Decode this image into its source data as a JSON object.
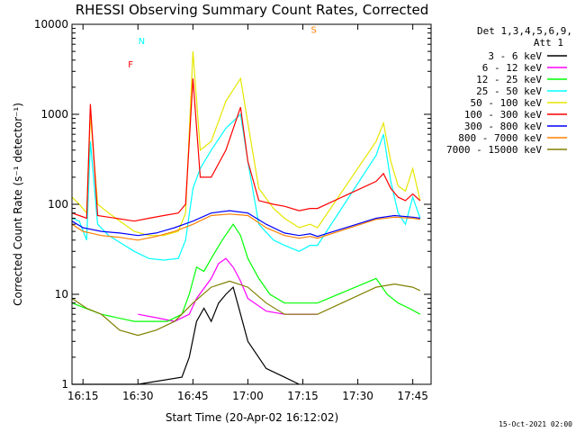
{
  "chart_data": {
    "type": "line",
    "title": "RHESSI Observing Summary Count Rates, Corrected",
    "xlabel": "Start Time (20-Apr-02 16:12:02)",
    "ylabel": "Corrected Count Rate (s⁻¹ detector⁻¹)",
    "y_scale": "log",
    "ylim": [
      1,
      10000
    ],
    "xlim": [
      "16:12",
      "17:50"
    ],
    "x_ticks": [
      "16:15",
      "16:30",
      "16:45",
      "17:00",
      "17:15",
      "17:30",
      "17:45"
    ],
    "y_ticks": [
      "1",
      "10",
      "100",
      "1000",
      "10000"
    ],
    "legend_position": "top-right, outside plot",
    "legend_header": [
      "Det 1,3,4,5,6,9,",
      "Att 1"
    ],
    "series": [
      {
        "name": "3 - 6 keV",
        "color": "#000000",
        "x": [
          "16:12",
          "16:30",
          "16:42",
          "16:44",
          "16:46",
          "16:48",
          "16:50",
          "16:52",
          "16:54",
          "16:56",
          "16:58",
          "17:00",
          "17:05",
          "17:10",
          "17:14"
        ],
        "y": [
          1,
          1,
          1.2,
          2,
          5,
          7,
          5,
          8,
          10,
          12,
          6,
          3,
          1.5,
          1.2,
          1
        ]
      },
      {
        "name": "6 - 12 keV",
        "color": "#ff00ff",
        "x": [
          "16:30",
          "16:35",
          "16:40",
          "16:44",
          "16:46",
          "16:50",
          "16:52",
          "16:54",
          "16:56",
          "16:58",
          "17:00",
          "17:05",
          "17:10",
          "17:14",
          "17:19"
        ],
        "y": [
          6,
          5.5,
          5,
          6,
          9,
          15,
          22,
          25,
          20,
          14,
          9,
          6.5,
          6,
          6,
          6
        ]
      },
      {
        "name": "12 - 25 keV",
        "color": "#00ff00",
        "x": [
          "16:12",
          "16:20",
          "16:29",
          "16:33",
          "16:38",
          "16:42",
          "16:44",
          "16:46",
          "16:48",
          "16:50",
          "16:53",
          "16:56",
          "16:58",
          "17:00",
          "17:03",
          "17:06",
          "17:10",
          "17:15",
          "17:19",
          "17:35",
          "17:38",
          "17:41",
          "17:44",
          "17:47"
        ],
        "y": [
          8,
          6,
          5,
          5,
          5,
          6,
          10,
          20,
          18,
          25,
          40,
          60,
          45,
          25,
          15,
          10,
          8,
          8,
          8,
          15,
          10,
          8,
          7,
          6
        ]
      },
      {
        "name": "25 - 50 keV",
        "color": "#00ffff",
        "x": [
          "16:12",
          "16:14",
          "16:16",
          "16:17",
          "16:19",
          "16:22",
          "16:29",
          "16:33",
          "16:37",
          "16:41",
          "16:43",
          "16:45",
          "16:47",
          "16:50",
          "16:54",
          "16:58",
          "17:00",
          "17:03",
          "17:07",
          "17:10",
          "17:14",
          "17:17",
          "17:19",
          "17:35",
          "17:37",
          "17:39",
          "17:41",
          "17:43",
          "17:45",
          "17:47"
        ],
        "y": [
          70,
          65,
          40,
          500,
          60,
          45,
          30,
          25,
          24,
          25,
          40,
          150,
          250,
          400,
          700,
          1000,
          300,
          60,
          40,
          35,
          30,
          35,
          35,
          350,
          600,
          180,
          80,
          60,
          120,
          70
        ]
      },
      {
        "name": "50 - 100 keV",
        "color": "#e6e600",
        "x": [
          "16:12",
          "16:14",
          "16:16",
          "16:17",
          "16:19",
          "16:22",
          "16:29",
          "16:33",
          "16:37",
          "16:41",
          "16:43",
          "16:45",
          "16:47",
          "16:50",
          "16:54",
          "16:58",
          "17:00",
          "17:03",
          "17:07",
          "17:10",
          "17:14",
          "17:17",
          "17:19",
          "17:35",
          "17:37",
          "17:39",
          "17:41",
          "17:43",
          "17:45",
          "17:47"
        ],
        "y": [
          120,
          100,
          80,
          1000,
          100,
          80,
          50,
          45,
          45,
          50,
          80,
          5000,
          400,
          500,
          1400,
          2500,
          800,
          150,
          90,
          70,
          55,
          60,
          55,
          500,
          800,
          300,
          160,
          140,
          250,
          110
        ]
      },
      {
        "name": "100 - 300 keV",
        "color": "#ff0000",
        "x": [
          "16:12",
          "16:14",
          "16:16",
          "16:17",
          "16:19",
          "16:22",
          "16:29",
          "16:33",
          "16:37",
          "16:41",
          "16:43",
          "16:45",
          "16:47",
          "16:50",
          "16:54",
          "16:58",
          "17:00",
          "17:03",
          "17:07",
          "17:10",
          "17:14",
          "17:17",
          "17:19",
          "17:35",
          "17:37",
          "17:39",
          "17:41",
          "17:43",
          "17:45",
          "17:47"
        ],
        "y": [
          80,
          75,
          70,
          1300,
          75,
          72,
          65,
          70,
          75,
          80,
          100,
          2500,
          200,
          200,
          400,
          1200,
          300,
          110,
          100,
          95,
          85,
          90,
          90,
          180,
          220,
          150,
          120,
          110,
          130,
          110
        ]
      },
      {
        "name": "300 - 800 keV",
        "color": "#0000ff",
        "x": [
          "16:12",
          "16:15",
          "16:20",
          "16:25",
          "16:30",
          "16:35",
          "16:40",
          "16:45",
          "16:50",
          "16:55",
          "17:00",
          "17:05",
          "17:10",
          "17:14",
          "17:17",
          "17:19",
          "17:35",
          "17:40",
          "17:45",
          "17:47"
        ],
        "y": [
          65,
          55,
          50,
          48,
          45,
          48,
          55,
          65,
          80,
          85,
          80,
          60,
          48,
          45,
          47,
          44,
          70,
          75,
          72,
          70
        ]
      },
      {
        "name": "800 - 7000 keV",
        "color": "#ff8000",
        "x": [
          "16:12",
          "16:15",
          "16:20",
          "16:25",
          "16:30",
          "16:35",
          "16:40",
          "16:45",
          "16:50",
          "16:55",
          "17:00",
          "17:05",
          "17:10",
          "17:14",
          "17:17",
          "17:19",
          "17:35",
          "17:40",
          "17:45",
          "17:47"
        ],
        "y": [
          60,
          50,
          45,
          43,
          40,
          44,
          50,
          60,
          75,
          78,
          75,
          55,
          45,
          42,
          44,
          42,
          68,
          72,
          70,
          68
        ]
      },
      {
        "name": "7000 - 15000 keV",
        "color": "#808000",
        "x": [
          "16:12",
          "16:16",
          "16:20",
          "16:25",
          "16:30",
          "16:35",
          "16:40",
          "16:45",
          "16:50",
          "16:55",
          "17:00",
          "17:05",
          "17:10",
          "17:14",
          "17:19",
          "17:35",
          "17:40",
          "17:45",
          "17:47"
        ],
        "y": [
          9,
          7,
          6,
          4,
          3.5,
          4,
          5,
          8,
          12,
          14,
          12,
          8,
          6,
          6,
          6,
          12,
          13,
          12,
          11
        ]
      }
    ],
    "annotations": [
      {
        "text": "N",
        "x": "16:31",
        "y": 6000,
        "color": "#00ffff"
      },
      {
        "text": "F",
        "x": "16:28",
        "y": 3300,
        "color": "#ff0000"
      },
      {
        "text": "S",
        "x": "17:18",
        "y": 8000,
        "color": "#ff8000"
      }
    ],
    "footer_stamp": "15-Oct-2021 02:00"
  }
}
